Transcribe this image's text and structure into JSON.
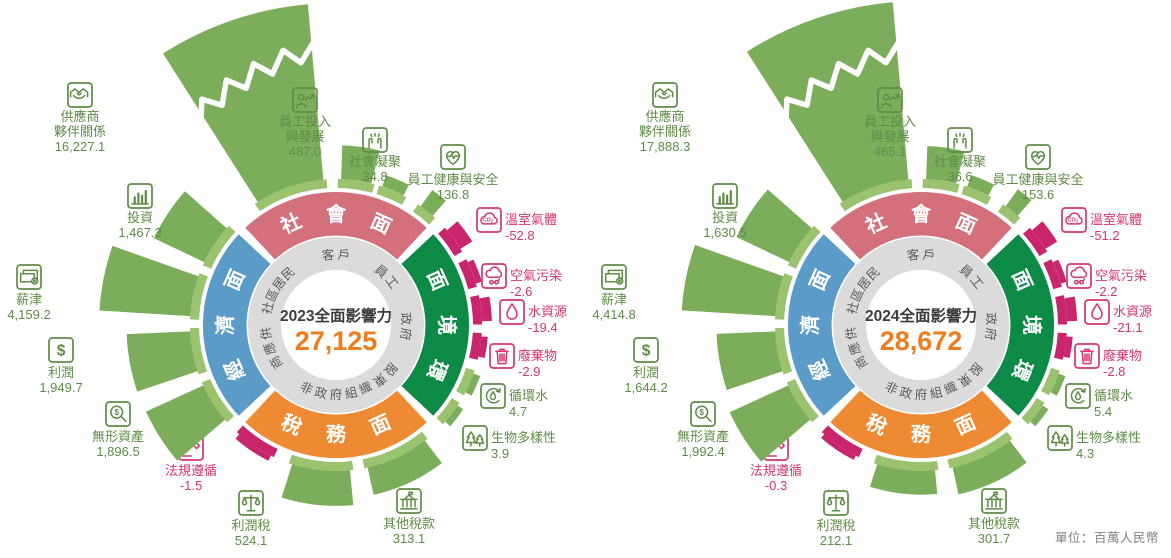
{
  "unit_label": "單位：百萬人民幣",
  "colors": {
    "positive_bar": "#7CAD5B",
    "positive_ring": "#9BC26E",
    "negative": "#C9256C",
    "positive_text": "#5E8C46",
    "negative_text": "#D5346F",
    "quadrant_social": "#D4707B",
    "quadrant_environment": "#0E8A47",
    "quadrant_tax": "#EE8A33",
    "quadrant_economy": "#5B9BC8",
    "ring_gray": "#DBDBDB",
    "stakeholder_text": "#595959",
    "title_text": "#3C3C3C",
    "total_value": "#EE7D1E",
    "unit_text": "#7F7F7F"
  },
  "chart_data": {
    "type": "radial-bar",
    "unit": "百萬人民幣",
    "legend_note": "positive values green, negative values magenta",
    "quadrants": [
      {
        "id": "social",
        "label": "社會面"
      },
      {
        "id": "environment",
        "label": "環境面"
      },
      {
        "id": "tax",
        "label": "稅務面"
      },
      {
        "id": "economy",
        "label": "經濟面"
      }
    ],
    "stakeholders": [
      "客戶",
      "員工",
      "政府",
      "股東",
      "非政府組織",
      "供應商",
      "社區居民"
    ],
    "indicators": [
      {
        "id": "supplier",
        "name": [
          "供應商",
          "夥伴關係"
        ],
        "icon": "handshake-icon",
        "group": "social"
      },
      {
        "id": "empdev",
        "name": [
          "員工投入",
          "與發展"
        ],
        "icon": "employee-growth-icon",
        "group": "social"
      },
      {
        "id": "cohesion",
        "name": [
          "社會凝聚"
        ],
        "icon": "raised-hands-icon",
        "group": "social"
      },
      {
        "id": "health",
        "name": [
          "員工健康與安全"
        ],
        "icon": "heart-pulse-icon",
        "group": "social"
      },
      {
        "id": "ghg",
        "name": [
          "溫室氣體"
        ],
        "icon": "co2-cloud-icon",
        "group": "environment"
      },
      {
        "id": "air",
        "name": [
          "空氣污染"
        ],
        "icon": "air-pollution-icon",
        "group": "environment"
      },
      {
        "id": "water",
        "name": [
          "水資源"
        ],
        "icon": "water-drop-icon",
        "group": "environment"
      },
      {
        "id": "waste",
        "name": [
          "廢棄物"
        ],
        "icon": "trash-bin-icon",
        "group": "environment"
      },
      {
        "id": "recycle",
        "name": [
          "循環水"
        ],
        "icon": "water-recycle-icon",
        "group": "environment"
      },
      {
        "id": "bio",
        "name": [
          "生物多樣性"
        ],
        "icon": "trees-icon",
        "group": "environment"
      },
      {
        "id": "othertax",
        "name": [
          "其他稅款"
        ],
        "icon": "bank-icon",
        "group": "tax"
      },
      {
        "id": "profittax",
        "name": [
          "利潤稅"
        ],
        "icon": "scales-icon",
        "group": "tax"
      },
      {
        "id": "compliance",
        "name": [
          "法規遵循"
        ],
        "icon": "gavel-icon",
        "group": "tax"
      },
      {
        "id": "intangible",
        "name": [
          "無形資產"
        ],
        "icon": "magnifier-dollar-icon",
        "group": "economy"
      },
      {
        "id": "profit",
        "name": [
          "利潤"
        ],
        "icon": "dollar-icon",
        "group": "economy"
      },
      {
        "id": "payroll",
        "name": [
          "薪津"
        ],
        "icon": "banknotes-icon",
        "group": "economy"
      },
      {
        "id": "invest",
        "name": [
          "投資"
        ],
        "icon": "bar-chart-icon",
        "group": "economy"
      }
    ],
    "charts": [
      {
        "title": "2023全面影響力",
        "total": "27,125",
        "values": {
          "supplier": 16227.1,
          "empdev": 487.0,
          "cohesion": 34.8,
          "health": 136.8,
          "ghg": -52.8,
          "air": -2.6,
          "water": -19.4,
          "waste": -2.9,
          "recycle": 4.7,
          "bio": 3.9,
          "othertax": 313.1,
          "profittax": 524.1,
          "compliance": -1.5,
          "intangible": 1896.5,
          "profit": 1949.7,
          "payroll": 4159.2,
          "invest": 1467.3
        }
      },
      {
        "title": "2024全面影響力",
        "total": "28,672",
        "values": {
          "supplier": 17888.3,
          "empdev": 465.1,
          "cohesion": 36.6,
          "health": 153.6,
          "ghg": -51.2,
          "air": -2.2,
          "water": -21.1,
          "waste": -2.8,
          "recycle": 5.4,
          "bio": 4.3,
          "othertax": 301.7,
          "profittax": 212.1,
          "compliance": -0.3,
          "intangible": 1992.4,
          "profit": 1644.2,
          "payroll": 4414.8,
          "invest": 1630.5
        }
      }
    ]
  }
}
